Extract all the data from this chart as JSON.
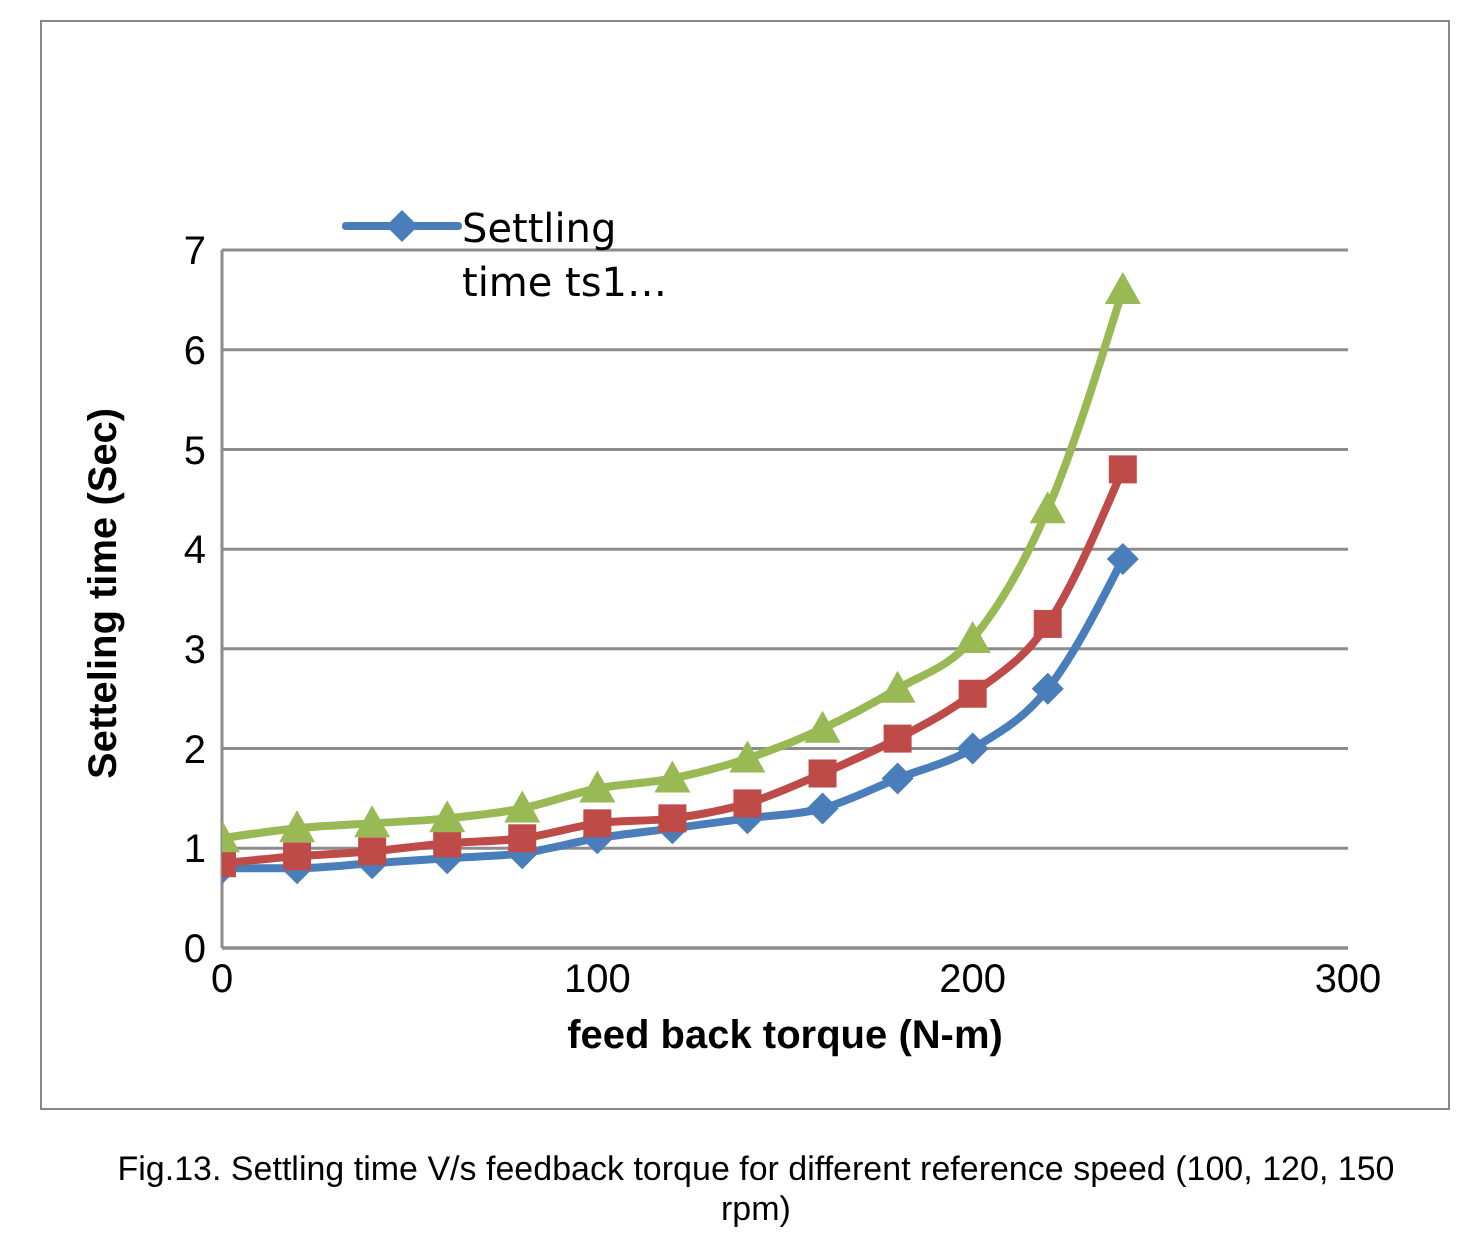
{
  "chart_data": {
    "type": "line",
    "xlabel": "feed back torque (N-m)",
    "ylabel": "Setteling time (Sec)",
    "annotations": [
      "Fig.13. Settling time V/s feedback torque for different reference speed (100, 120, 150 rpm)"
    ],
    "x": [
      0,
      20,
      40,
      60,
      80,
      100,
      120,
      140,
      160,
      180,
      200,
      220,
      240
    ],
    "series": [
      {
        "name": "Settling time ts1…",
        "color": "#4a7ebb",
        "marker": "diamond",
        "values": [
          0.8,
          0.8,
          0.85,
          0.9,
          0.95,
          1.1,
          1.2,
          1.3,
          1.4,
          1.7,
          2.0,
          2.6,
          3.9
        ]
      },
      {
        "color": "#be4b48",
        "marker": "square",
        "values": [
          0.85,
          0.92,
          0.97,
          1.05,
          1.1,
          1.25,
          1.3,
          1.45,
          1.75,
          2.1,
          2.55,
          3.25,
          4.8
        ]
      },
      {
        "color": "#98b954",
        "marker": "triangle",
        "values": [
          1.1,
          1.2,
          1.25,
          1.3,
          1.4,
          1.6,
          1.7,
          1.9,
          2.2,
          2.6,
          3.1,
          4.4,
          6.6
        ]
      }
    ],
    "xlim": [
      0,
      300
    ],
    "xticks": [
      0,
      100,
      200,
      300
    ],
    "ylim": [
      0,
      7
    ],
    "yticks": [
      0,
      1,
      2,
      3,
      4,
      5,
      6,
      7
    ],
    "grid": "y",
    "legend": "top left",
    "line_style": "solid"
  }
}
